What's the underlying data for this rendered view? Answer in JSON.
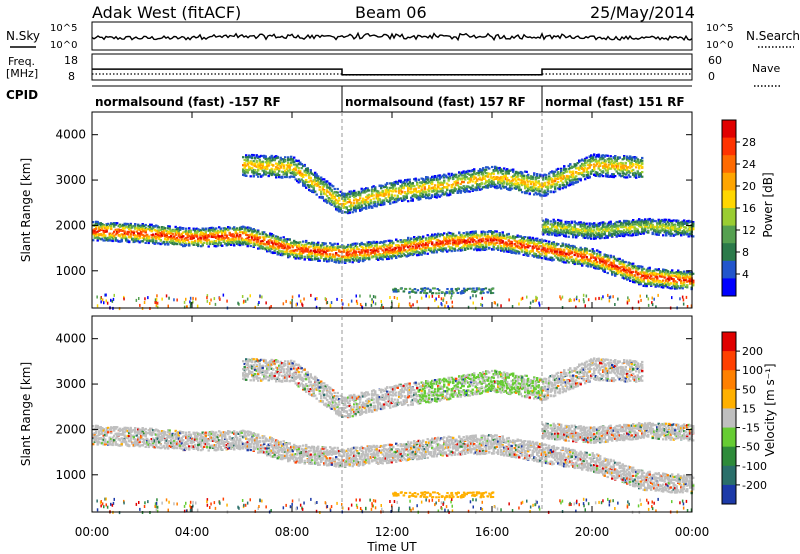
{
  "header": {
    "station": "Adak West (fitACF)",
    "beam": "Beam 06",
    "date": "25/May/2014"
  },
  "noise_panel": {
    "left_label": "N.Sky",
    "right_label": "N.Search",
    "tick_top": "10^5",
    "tick_bottom": "10^0"
  },
  "freq_panel": {
    "left_label_line1": "Freq.",
    "left_label_line2": "[MHz]",
    "right_label": "Nave",
    "left_ticks": [
      "18",
      "8"
    ],
    "right_ticks": [
      "60",
      "0"
    ],
    "freq_segments": [
      {
        "start_hr": 0,
        "end_hr": 10,
        "value": 11.0
      },
      {
        "start_hr": 10,
        "end_hr": 18,
        "value": 8.4
      },
      {
        "start_hr": 18,
        "end_hr": 24,
        "value": 11.0
      }
    ]
  },
  "cpid_panel": {
    "label": "CPID",
    "segments": [
      {
        "start_hr": 0,
        "text": "normalsound (fast) -157 RF"
      },
      {
        "start_hr": 10,
        "text": "normalsound (fast) 157 RF"
      },
      {
        "start_hr": 18,
        "text": "normal (fast) 151 RF"
      }
    ]
  },
  "power_panel": {
    "ylabel": "Slant Range [km]",
    "yticks": [
      "4000",
      "3000",
      "2000",
      "1000"
    ],
    "colorbar_label": "Power [dB]",
    "colorbar_ticks": [
      "28",
      "24",
      "20",
      "16",
      "12",
      "8",
      "4"
    ],
    "colors": [
      "#0000ff",
      "#2255cc",
      "#2b7a4a",
      "#55a050",
      "#9acd32",
      "#ffd700",
      "#ffa500",
      "#ff6a00",
      "#ff3300",
      "#e00000"
    ]
  },
  "velocity_panel": {
    "ylabel": "Slant Range [km]",
    "yticks": [
      "4000",
      "3000",
      "2000",
      "1000"
    ],
    "colorbar_label": "Velocity [m s⁻¹]",
    "colorbar_ticks": [
      "200",
      "100",
      "50",
      "15",
      "-15",
      "-50",
      "-100",
      "-200"
    ],
    "colors": [
      "#1c3aa8",
      "#2a6f6a",
      "#2e8b3a",
      "#66cc33",
      "#bfbfbf",
      "#ffb000",
      "#ff8000",
      "#ff4000",
      "#e00000"
    ]
  },
  "x_axis": {
    "ticks": [
      "00:00",
      "04:00",
      "08:00",
      "12:00",
      "16:00",
      "20:00",
      "00:00"
    ],
    "label": "Time UT"
  },
  "chart_data": {
    "type": "heatmap",
    "x_range_hours": [
      0,
      24
    ],
    "y_range_km": [
      180,
      4500
    ],
    "power_colorbar_range_db": [
      0,
      30
    ],
    "velocity_colorbar_range": [
      -200,
      200
    ],
    "mode_changes_hr": [
      10,
      18
    ],
    "power_bands": [
      {
        "name": "band-near",
        "points": [
          [
            0,
            1900
          ],
          [
            2,
            1850
          ],
          [
            4,
            1750
          ],
          [
            6,
            1800
          ],
          [
            8,
            1500
          ],
          [
            10,
            1400
          ],
          [
            12,
            1500
          ],
          [
            14,
            1650
          ],
          [
            16,
            1700
          ],
          [
            18,
            1500
          ],
          [
            20,
            1300
          ],
          [
            22,
            900
          ],
          [
            24,
            800
          ]
        ],
        "width_km": 260,
        "peak_db": 26
      },
      {
        "name": "band-far",
        "points": [
          [
            6,
            3350
          ],
          [
            8,
            3300
          ],
          [
            10,
            2500
          ],
          [
            12,
            2750
          ],
          [
            14,
            2900
          ],
          [
            16,
            3100
          ],
          [
            18,
            2900
          ],
          [
            20,
            3350
          ],
          [
            22,
            3300
          ]
        ],
        "width_km": 300,
        "peak_db": 18
      },
      {
        "name": "band-mid",
        "points": [
          [
            18,
            2000
          ],
          [
            20,
            1900
          ],
          [
            22,
            2000
          ],
          [
            24,
            1950
          ]
        ],
        "width_km": 220,
        "peak_db": 14
      }
    ]
  }
}
